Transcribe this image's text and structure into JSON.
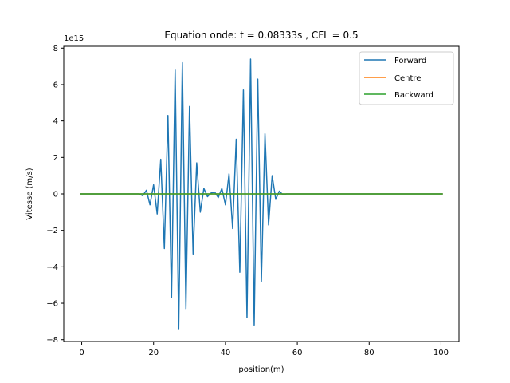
{
  "chart_data": {
    "type": "line",
    "title": "Equation onde: t = 0.08333s , CFL = 0.5",
    "xlabel": "position(m)",
    "ylabel": "Vitesse (m/s)",
    "y_offset_label": "1e15",
    "y_scale": 1000000000000000.0,
    "xlim": [
      -5,
      105
    ],
    "ylim": [
      -8.1,
      8.1
    ],
    "x_ticks": [
      0,
      20,
      40,
      60,
      80,
      100
    ],
    "x_tick_labels": [
      "0",
      "20",
      "40",
      "60",
      "80",
      "100"
    ],
    "y_ticks": [
      -8,
      -6,
      -4,
      -2,
      0,
      2,
      4,
      6,
      8
    ],
    "y_tick_labels": [
      "−8",
      "−6",
      "−4",
      "−2",
      "0",
      "2",
      "4",
      "6",
      "8"
    ],
    "grid": false,
    "legend_position": "top-right",
    "series": [
      {
        "name": "Forward",
        "color": "#1f77b4",
        "x": [
          -0.5,
          16,
          17,
          18,
          19,
          20,
          21,
          22,
          23,
          24,
          25,
          26,
          27,
          28,
          29,
          30,
          31,
          32,
          33,
          34,
          35,
          36,
          37,
          38,
          39,
          40,
          41,
          42,
          43,
          44,
          45,
          46,
          47,
          48,
          49,
          50,
          51,
          52,
          53,
          54,
          55,
          56,
          57,
          100.5
        ],
        "y": [
          0,
          0,
          -0.1,
          0.2,
          -0.6,
          0.5,
          -1.1,
          1.9,
          -3.0,
          4.3,
          -5.7,
          6.8,
          -7.4,
          7.2,
          -6.3,
          4.8,
          -3.3,
          1.7,
          -1.0,
          0.3,
          -0.15,
          0.05,
          0.1,
          -0.2,
          0.3,
          -0.6,
          1.1,
          -1.9,
          3.0,
          -4.3,
          5.7,
          -6.8,
          7.4,
          -7.2,
          6.3,
          -4.8,
          3.3,
          -1.7,
          1.0,
          -0.3,
          0.15,
          -0.05,
          0,
          0
        ]
      },
      {
        "name": "Centre",
        "color": "#ff7f0e",
        "x": [
          -0.5,
          100.5
        ],
        "y": [
          0,
          0
        ]
      },
      {
        "name": "Backward",
        "color": "#2ca02c",
        "x": [
          -0.5,
          100.5
        ],
        "y": [
          0,
          0
        ]
      }
    ]
  }
}
